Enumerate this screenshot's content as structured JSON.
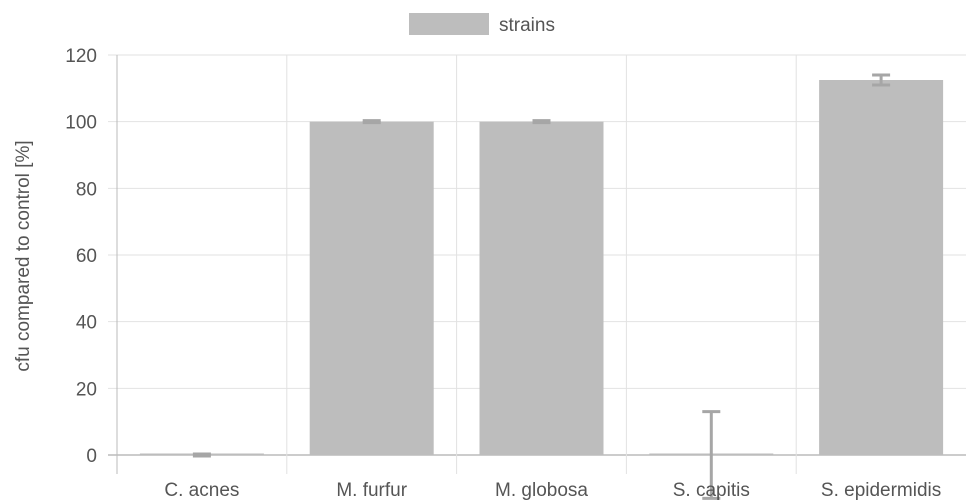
{
  "chart_data": {
    "type": "bar",
    "categories": [
      "C. acnes",
      "M. furfur",
      "M. globosa",
      "S. capitis",
      "S. epidermidis"
    ],
    "series": [
      {
        "name": "strains",
        "values": [
          0,
          100,
          100,
          0,
          112.5
        ],
        "error": [
          0.3,
          0.3,
          0.3,
          13,
          1.5
        ]
      }
    ],
    "xlabel": "",
    "ylabel": "cfu compared to control [%]",
    "ylim": [
      0,
      120
    ],
    "yticks": [
      0,
      20,
      40,
      60,
      80,
      100,
      120
    ],
    "grid": true,
    "legend_position": "top-center"
  },
  "colors": {
    "bar": "#bdbdbd",
    "error_bar": "#a6a6a6",
    "grid": "#e2e2e2",
    "axis": "#bbbbbb",
    "text": "#555555"
  }
}
